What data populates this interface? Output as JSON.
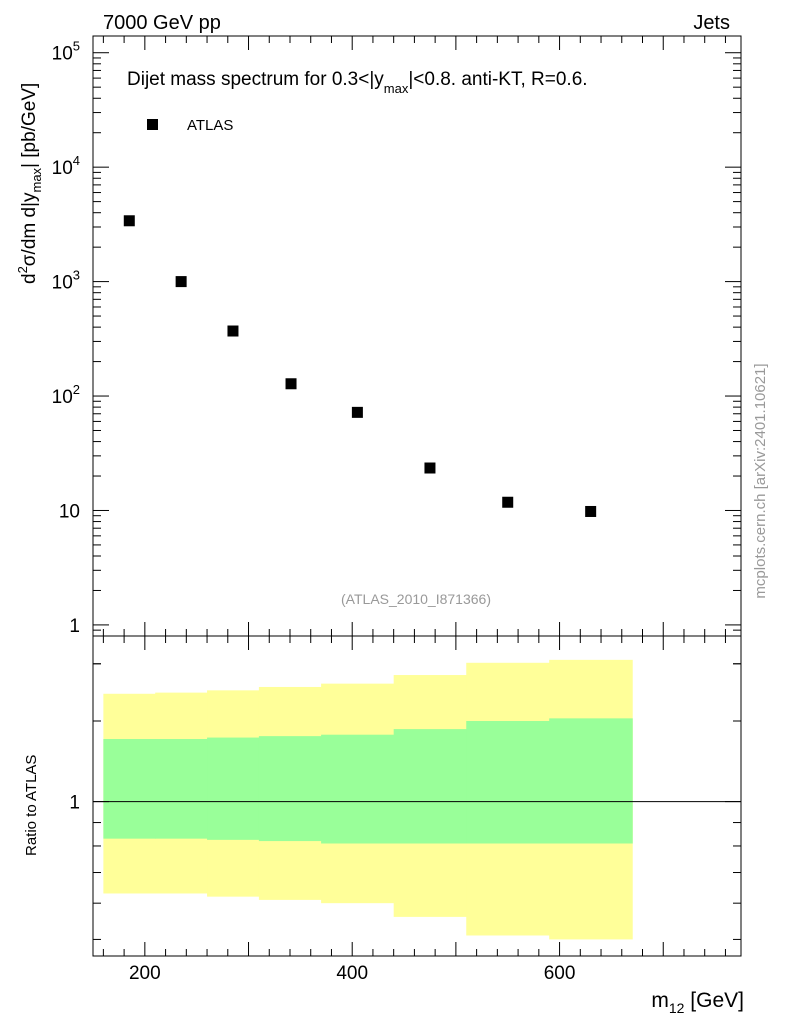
{
  "header": {
    "left": "7000 GeV pp",
    "right": "Jets"
  },
  "side_label": "mcplots.cern.ch [arXiv:2401.10621]",
  "chart_data": [
    {
      "type": "scatter",
      "title": "Dijet mass spectrum for 0.3<|y_max|<0.8.  anti-KT, R=0.6.",
      "title_parts": {
        "pre": "Dijet mass spectrum for 0.3<|y",
        "sub": "max",
        "post": "|<0.8.  anti-KT, R=0.6."
      },
      "ylabel_parts": {
        "a": "d",
        "sup": "2",
        "b": "σ/dm d|y",
        "sub": "max",
        "c": "| [pb/GeV]"
      },
      "yscale": "log",
      "ylim": [
        0.8,
        140000
      ],
      "xlim": [
        150,
        775
      ],
      "yticks": [
        {
          "v": 1,
          "label": "1",
          "sup": ""
        },
        {
          "v": 10,
          "label": "10",
          "sup": ""
        },
        {
          "v": 100,
          "label": "10",
          "sup": "2"
        },
        {
          "v": 1000,
          "label": "10",
          "sup": "3"
        },
        {
          "v": 10000,
          "label": "10",
          "sup": "4"
        },
        {
          "v": 100000,
          "label": "10",
          "sup": "5"
        }
      ],
      "legend": [
        {
          "name": "ATLAS",
          "marker": "square",
          "color": "#000000"
        }
      ],
      "watermark": "(ATLAS_2010_I871366)",
      "series": [
        {
          "name": "ATLAS",
          "x": [
            185,
            235,
            285,
            341,
            405,
            475,
            550,
            630
          ],
          "y": [
            3400,
            1000,
            370,
            128,
            72,
            23.5,
            11.8,
            9.8
          ]
        }
      ]
    },
    {
      "type": "area",
      "ylabel": "Ratio to ATLAS",
      "xlabel": "m",
      "xlabel_sub": "12",
      "xlabel_unit": " [GeV]",
      "xlim": [
        150,
        775
      ],
      "ylim": [
        0.46,
        2.3
      ],
      "yscale": "log",
      "yticks": [
        {
          "v": 1,
          "label": "1"
        }
      ],
      "xticks": [
        {
          "v": 200,
          "label": "200"
        },
        {
          "v": 400,
          "label": "400"
        },
        {
          "v": 600,
          "label": "600"
        }
      ],
      "bin_edges": [
        160,
        210,
        260,
        310,
        370,
        440,
        510,
        590,
        670
      ],
      "bands": [
        {
          "name": "total",
          "color": "#ffff99",
          "low": [
            0.63,
            0.63,
            0.62,
            0.61,
            0.6,
            0.56,
            0.51,
            0.5
          ],
          "high": [
            1.72,
            1.73,
            1.75,
            1.78,
            1.81,
            1.89,
            2.01,
            2.04
          ]
        },
        {
          "name": "stat",
          "color": "#99ff99",
          "low": [
            0.83,
            0.83,
            0.825,
            0.82,
            0.81,
            0.81,
            0.81,
            0.81
          ],
          "high": [
            1.37,
            1.37,
            1.38,
            1.39,
            1.4,
            1.44,
            1.5,
            1.52
          ]
        }
      ],
      "reference_line": 1
    }
  ]
}
